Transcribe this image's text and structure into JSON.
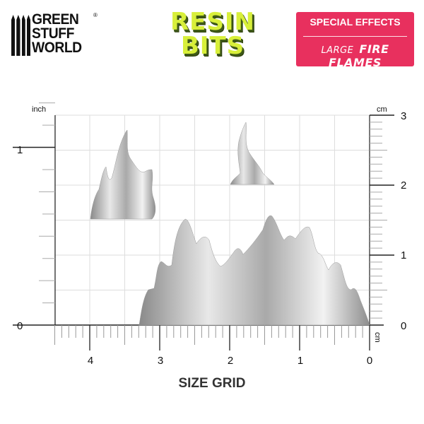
{
  "logos": {
    "brand": {
      "lines": [
        "GREEN",
        "STUFF",
        "WORLD"
      ],
      "registered": "®"
    },
    "product_line": {
      "lines": [
        "RESIN",
        "BITS"
      ],
      "color": "#d8ef3a"
    },
    "category": {
      "top": "SPECIAL EFFECTS",
      "prefix": "LARGE",
      "name": "FIRE FLAMES",
      "color": "#e8305e"
    }
  },
  "size_grid": {
    "title": "SIZE GRID",
    "left_unit": "inch",
    "right_unit": "cm",
    "bottom_unit": "cm",
    "left_ticks": [
      "0",
      "1"
    ],
    "right_ticks": [
      "0",
      "1",
      "2",
      "3"
    ],
    "bottom_ticks": [
      "4",
      "3",
      "2",
      "1",
      "0"
    ],
    "items": [
      "small-flame-left",
      "small-flame-right",
      "large-flame-row"
    ]
  }
}
